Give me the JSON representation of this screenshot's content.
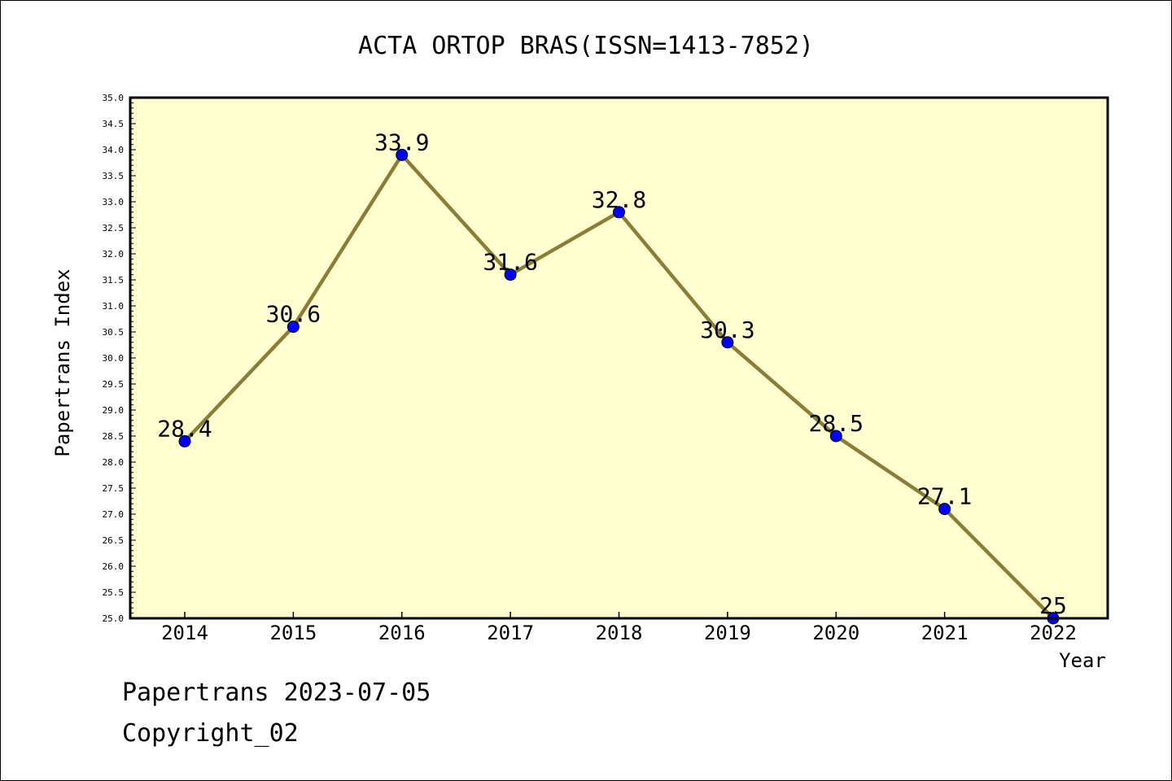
{
  "chart_data": {
    "type": "line",
    "title": "ACTA ORTOP BRAS(ISSN=1413-7852)",
    "xlabel": "Year",
    "ylabel": "Papertrans Index",
    "categories": [
      "2014",
      "2015",
      "2016",
      "2017",
      "2018",
      "2019",
      "2020",
      "2021",
      "2022"
    ],
    "values": [
      28.4,
      30.6,
      33.9,
      31.6,
      32.8,
      30.3,
      28.5,
      27.1,
      25
    ],
    "value_labels": [
      "28.4",
      "30.6",
      "33.9",
      "31.6",
      "32.8",
      "30.3",
      "28.5",
      "27.1",
      "25"
    ],
    "ylim": [
      25.0,
      35.0
    ],
    "y_ticks": [
      "25.0",
      "25.5",
      "26.0",
      "26.5",
      "27.0",
      "27.5",
      "28.0",
      "28.5",
      "29.0",
      "29.5",
      "30.0",
      "30.5",
      "31.0",
      "31.5",
      "32.0",
      "32.5",
      "33.0",
      "33.5",
      "34.0",
      "34.5",
      "35.0"
    ],
    "grid": false,
    "legend": "none",
    "colors": {
      "plot_background": "#ffffd0",
      "line": "#8b7d35",
      "marker": "#0000ff"
    }
  },
  "footer": {
    "line1": "Papertrans 2023-07-05",
    "line2": "Copyright_02"
  }
}
